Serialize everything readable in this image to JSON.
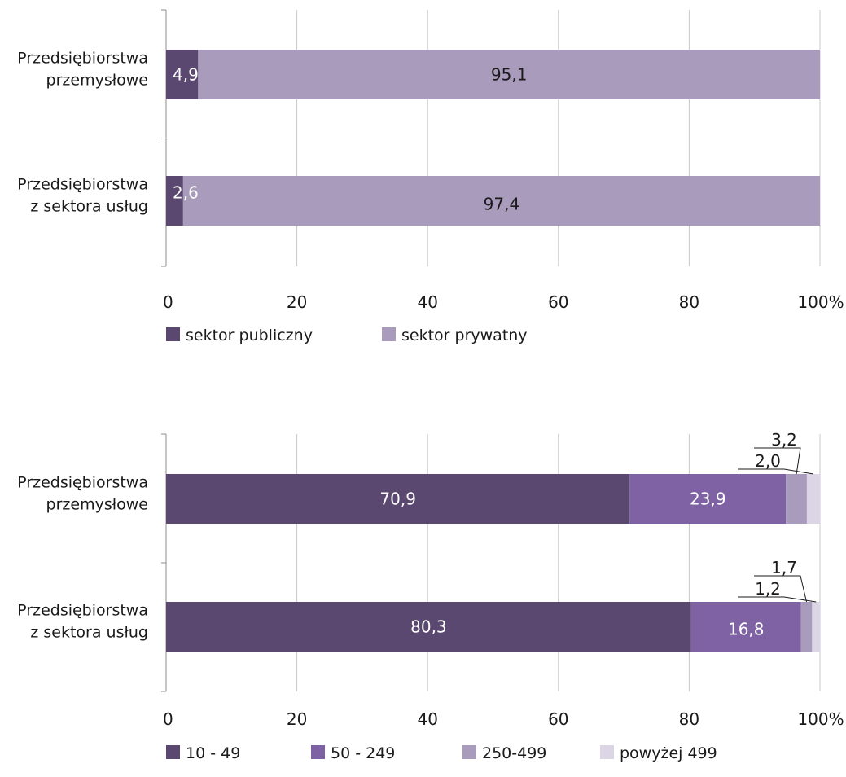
{
  "colors": {
    "public": "#5a4870",
    "private": "#a99bbb",
    "size_10_49": "#5a4870",
    "size_50_249": "#7e62a3",
    "size_250_499": "#a99bbb",
    "size_over_499": "#dcd5e6",
    "grid": "#c8c8c8",
    "axis": "#8c8c8c"
  },
  "chart_data": [
    {
      "type": "bar",
      "orientation": "horizontal",
      "stacked": true,
      "categories": [
        "Przedsiębiorstwa przemysłowe",
        "Przedsiębiorstwa z sektora usług"
      ],
      "category_lines": [
        [
          "Przedsiębiorstwa",
          "przemysłowe"
        ],
        [
          "Przedsiębiorstwa",
          "z sektora usług"
        ]
      ],
      "series": [
        {
          "name": "sektor publiczny",
          "values": [
            4.9,
            2.6
          ],
          "labels": [
            "4,9",
            "2,6"
          ],
          "color_key": "public",
          "label_color": "#ffffff"
        },
        {
          "name": "sektor prywatny",
          "values": [
            95.1,
            97.4
          ],
          "labels": [
            "95,1",
            "97,4"
          ],
          "color_key": "private",
          "label_color": "#1a1a1a"
        }
      ],
      "xlim": [
        0,
        100
      ],
      "xticks": [
        "0",
        "20",
        "40",
        "60",
        "80",
        "100%"
      ],
      "grid": true,
      "legend_position": "bottom-left"
    },
    {
      "type": "bar",
      "orientation": "horizontal",
      "stacked": true,
      "categories": [
        "Przedsiębiorstwa przemysłowe",
        "Przedsiębiorstwa z sektora usług"
      ],
      "category_lines": [
        [
          "Przedsiębiorstwa",
          "przemysłowe"
        ],
        [
          "Przedsiębiorstwa",
          "z sektora usług"
        ]
      ],
      "series": [
        {
          "name": "10 - 49",
          "values": [
            70.9,
            80.3
          ],
          "labels": [
            "70,9",
            "80,3"
          ],
          "color_key": "size_10_49",
          "label_color": "#ffffff"
        },
        {
          "name": "50 - 249",
          "values": [
            23.9,
            16.8
          ],
          "labels": [
            "23,9",
            "16,8"
          ],
          "color_key": "size_50_249",
          "label_color": "#ffffff"
        },
        {
          "name": "250-499",
          "values": [
            3.2,
            1.7
          ],
          "labels": [
            "3,2",
            "1,7"
          ],
          "color_key": "size_250_499",
          "label_color": "#1a1a1a",
          "callout": true
        },
        {
          "name": "powyżej 499",
          "values": [
            2.0,
            1.2
          ],
          "labels": [
            "2,0",
            "1,2"
          ],
          "color_key": "size_over_499",
          "label_color": "#1a1a1a",
          "callout": true
        }
      ],
      "xlim": [
        0,
        100
      ],
      "xticks": [
        "0",
        "20",
        "40",
        "60",
        "80",
        "100%"
      ],
      "grid": true,
      "legend_position": "bottom-left"
    }
  ]
}
